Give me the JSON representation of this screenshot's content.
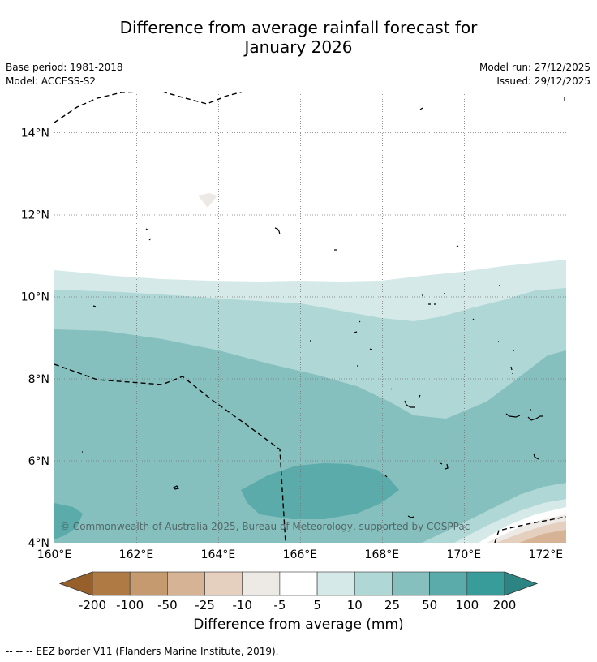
{
  "title": {
    "line1": "Difference from average rainfall forecast for",
    "line2": "January 2026"
  },
  "meta": {
    "base_period": "Base period: 1981-2018",
    "model": "Model: ACCESS-S2",
    "model_run": "Model run: 27/12/2025",
    "issued": "Issued: 29/12/2025"
  },
  "map": {
    "lon_range": [
      160,
      172.5
    ],
    "lat_range": [
      4,
      15
    ],
    "lat_ticks": [
      {
        "value": 14,
        "label": "14°N"
      },
      {
        "value": 12,
        "label": "12°N"
      },
      {
        "value": 10,
        "label": "10°N"
      },
      {
        "value": 8,
        "label": "8°N"
      },
      {
        "value": 6,
        "label": "6°N"
      },
      {
        "value": 4,
        "label": "4°N"
      }
    ],
    "lon_ticks": [
      {
        "value": 160,
        "label": "160°E"
      },
      {
        "value": 162,
        "label": "162°E"
      },
      {
        "value": 164,
        "label": "164°E"
      },
      {
        "value": 166,
        "label": "166°E"
      },
      {
        "value": 168,
        "label": "168°E"
      },
      {
        "value": 170,
        "label": "170°E"
      },
      {
        "value": 172,
        "label": "172°E"
      }
    ],
    "copyright": "© Commonwealth of Australia 2025, Bureau of Meteorology, supported by COSPPac"
  },
  "colorbar": {
    "labels": [
      "-200",
      "-100",
      "-50",
      "-25",
      "-10",
      "-5",
      "5",
      "10",
      "25",
      "50",
      "100",
      "200"
    ],
    "colors": [
      "#97602b",
      "#b07a45",
      "#c49a6e",
      "#d5b394",
      "#e5d0bf",
      "#ede9e5",
      "#ffffff",
      "#d4e9e8",
      "#aed7d6",
      "#85c0bf",
      "#5aabaa",
      "#379c9a",
      "#2d8583"
    ],
    "title": "Difference from average (mm)"
  },
  "footer": "--  --  -- EEZ border V11 (Flanders Marine Institute, 2019)."
}
